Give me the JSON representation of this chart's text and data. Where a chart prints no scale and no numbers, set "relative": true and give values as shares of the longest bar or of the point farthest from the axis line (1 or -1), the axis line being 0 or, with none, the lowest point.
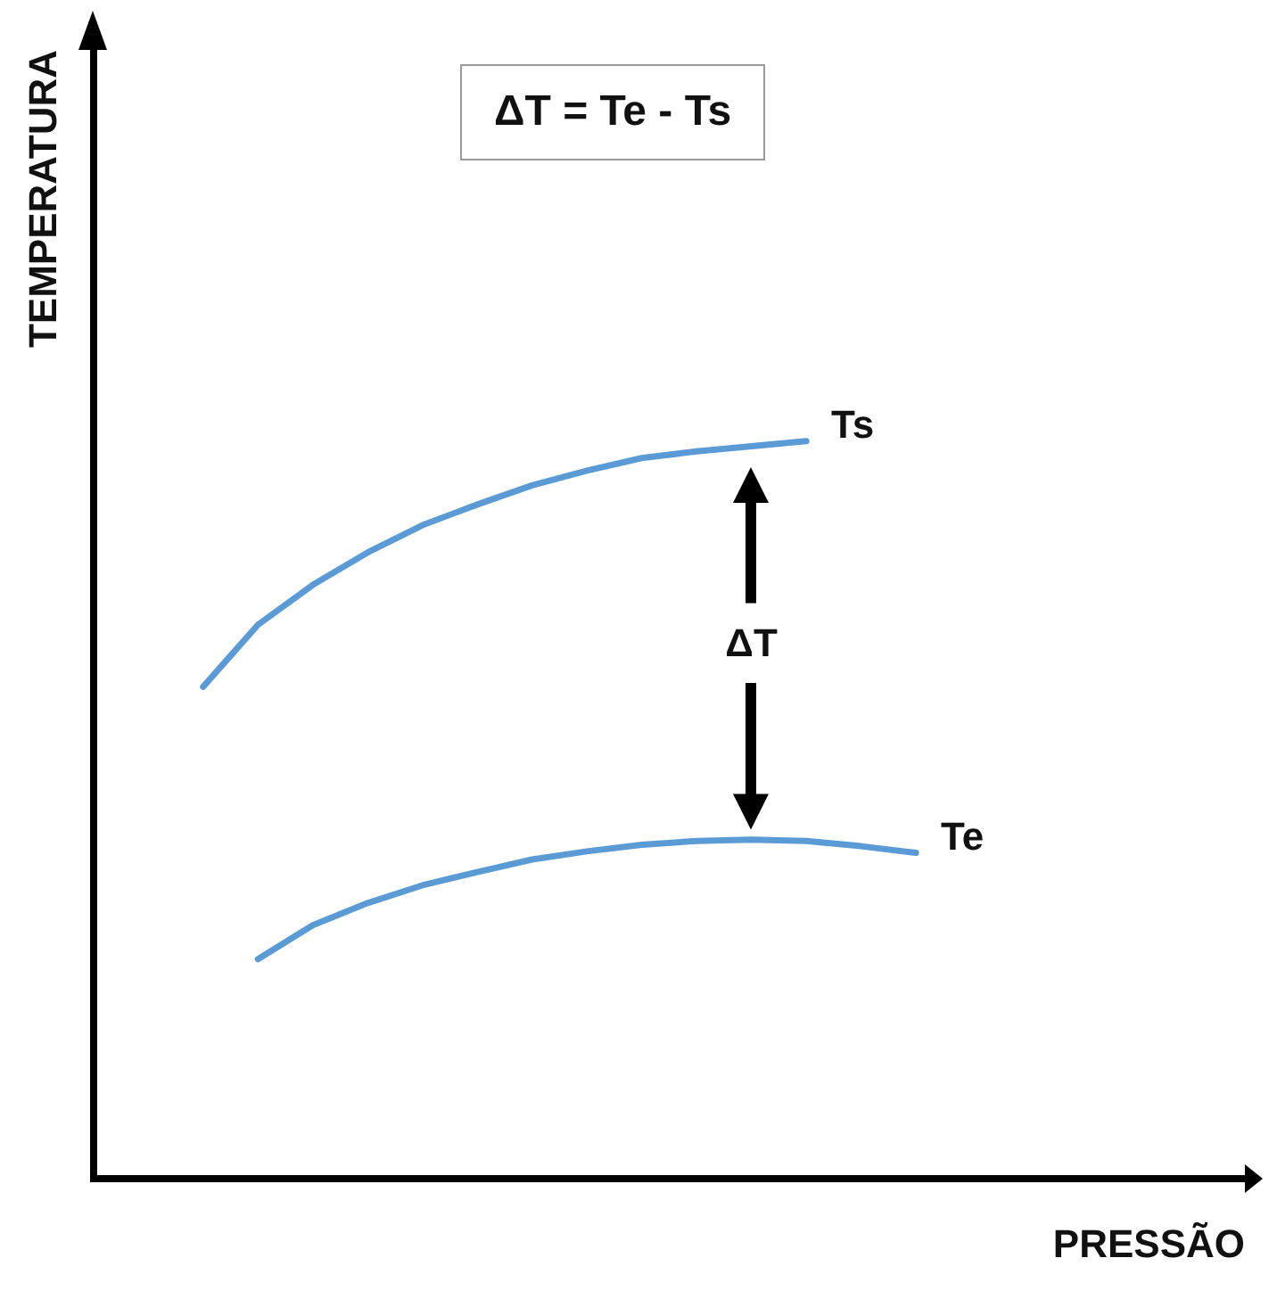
{
  "chart_data": {
    "type": "line",
    "relative": true,
    "xlabel": "PRESSÃO",
    "ylabel": "TEMPERATURA",
    "legend": false,
    "grid": false,
    "marker": "none",
    "line_style": "solid",
    "annotations": [
      "ΔT = Te - Ts",
      "ΔT"
    ],
    "categories": [
      null,
      null,
      null,
      null,
      null,
      null,
      null,
      null,
      null,
      null,
      null,
      null,
      null,
      null,
      null,
      null,
      null,
      null,
      null,
      null,
      null,
      null
    ],
    "series": [
      {
        "name": "Ts",
        "color": "#5b9bd5",
        "values": [
          null,
          null,
          0.667,
          0.751,
          0.805,
          0.849,
          0.886,
          0.914,
          0.94,
          0.96,
          0.977,
          0.986,
          0.993,
          1,
          null,
          null,
          null,
          null,
          null,
          null,
          null,
          null
        ]
      },
      {
        "name": "Te",
        "color": "#5b9bd5",
        "values": [
          null,
          null,
          null,
          0.298,
          0.344,
          0.374,
          0.398,
          0.416,
          0.433,
          0.444,
          0.453,
          0.458,
          0.46,
          0.458,
          0.451,
          0.442,
          null,
          null,
          null,
          null,
          null,
          null
        ]
      }
    ]
  }
}
